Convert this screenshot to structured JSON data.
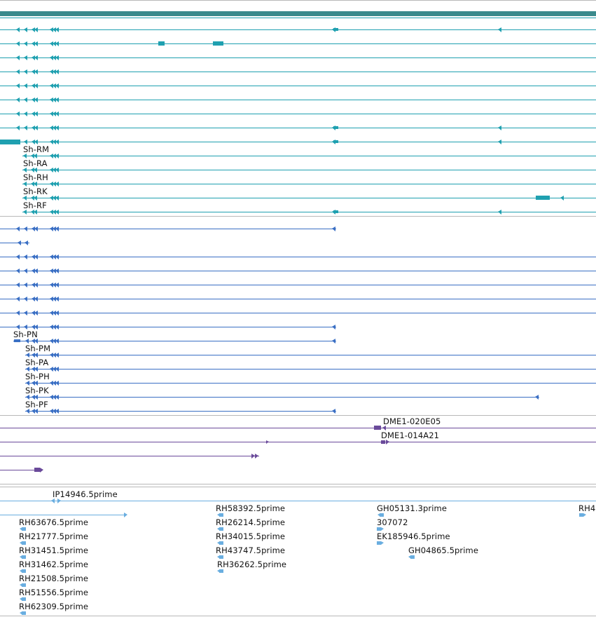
{
  "colors": {
    "background": "#ffffff",
    "teal_gene": "#1fa0b0",
    "teal_band": "#3a8a8c",
    "blue_gene": "#3a6fc4",
    "purple_clone": "#6a4a9a",
    "light_blue_est": "#6aaee0",
    "divider": "#b8b8b8",
    "label_text": "#111111"
  },
  "tracks": {
    "teal_transcripts": {
      "labels": [
        "Sh-RM",
        "Sh-RA",
        "Sh-RH",
        "Sh-RK",
        "Sh-RF"
      ]
    },
    "blue_transcripts": {
      "labels": [
        "Sh-PN",
        "Sh-PM",
        "Sh-PA",
        "Sh-PH",
        "Sh-PK",
        "Sh-PF"
      ]
    },
    "purple_clones": {
      "labels": [
        "DME1-020E05",
        "DME1-014A21"
      ]
    },
    "est_reads": {
      "labels": [
        "IP14946.5prime",
        "RH63676.5prime",
        "RH21777.5prime",
        "RH31451.5prime",
        "RH31462.5prime",
        "RH21508.5prime",
        "RH51556.5prime",
        "RH62309.5prime",
        "RH58392.5prime",
        "RH26214.5prime",
        "RH34015.5prime",
        "RH43747.5prime",
        "RH36262.5prime",
        "GH05131.3prime",
        "307072",
        "EK185946.5prime",
        "GH04865.5prime",
        "RH4"
      ]
    }
  }
}
